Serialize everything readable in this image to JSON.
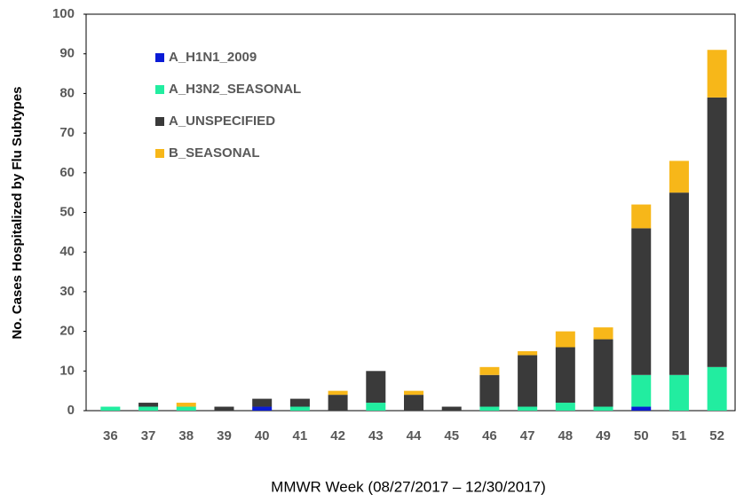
{
  "chart_data": {
    "type": "stacked-bar",
    "x_label": "MMWR Week (08/27/2017 – 12/30/2017)",
    "y_label": "No. Cases Hospitalized by Flu Subtypes",
    "categories": [
      "36",
      "37",
      "38",
      "39",
      "40",
      "41",
      "42",
      "43",
      "44",
      "45",
      "46",
      "47",
      "48",
      "49",
      "50",
      "51",
      "52"
    ],
    "series": [
      {
        "name": "A_H1N1_2009",
        "color": "#0a1bd6",
        "values": [
          0,
          0,
          0,
          0,
          1,
          0,
          0,
          0,
          0,
          0,
          0,
          0,
          0,
          0,
          1,
          0,
          0
        ]
      },
      {
        "name": "A_H3N2_SEASONAL",
        "color": "#22eda0",
        "values": [
          1,
          1,
          1,
          0,
          0,
          1,
          0,
          2,
          0,
          0,
          1,
          1,
          2,
          1,
          8,
          9,
          11
        ]
      },
      {
        "name": "A_UNSPECIFIED",
        "color": "#3a3a3a",
        "values": [
          0,
          1,
          0,
          1,
          2,
          2,
          4,
          8,
          4,
          1,
          8,
          13,
          14,
          17,
          37,
          46,
          68
        ]
      },
      {
        "name": "B_SEASONAL",
        "color": "#f7b719",
        "values": [
          0,
          0,
          1,
          0,
          0,
          0,
          1,
          0,
          1,
          0,
          2,
          1,
          4,
          3,
          6,
          8,
          12
        ]
      }
    ],
    "ylim": [
      0,
      100
    ],
    "yticks": [
      0,
      10,
      20,
      30,
      40,
      50,
      60,
      70,
      80,
      90,
      100
    ],
    "legend": "upper-left"
  }
}
